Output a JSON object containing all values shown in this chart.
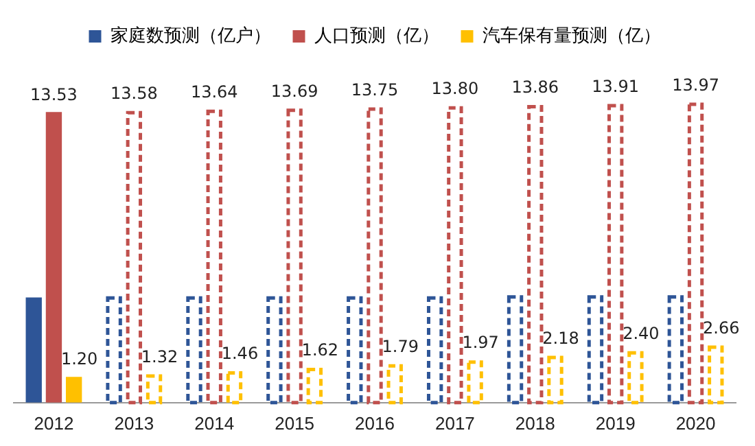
{
  "chart_data": {
    "type": "bar",
    "categories": [
      "2012",
      "2013",
      "2014",
      "2015",
      "2016",
      "2017",
      "2018",
      "2019",
      "2020"
    ],
    "tick_labels": "x",
    "legend": "top",
    "line_style": "dashed",
    "series": [
      {
        "name": "家庭数预测（亿户）",
        "color": "#2e5597",
        "values": [
          4.9,
          4.95,
          4.95,
          4.95,
          4.95,
          4.95,
          5.0,
          5.0,
          5.0
        ],
        "value_labels": [
          null,
          null,
          null,
          null,
          null,
          null,
          null,
          null,
          null
        ]
      },
      {
        "name": "人口预测（亿）",
        "color": "#c0504d",
        "values": [
          13.53,
          13.58,
          13.64,
          13.69,
          13.75,
          13.8,
          13.86,
          13.91,
          13.97
        ],
        "value_labels": [
          "13.53",
          "13.58",
          "13.64",
          "13.69",
          "13.75",
          "13.80",
          "13.86",
          "13.91",
          "13.97"
        ]
      },
      {
        "name": "汽车保有量预测（亿）",
        "color": "#ffc000",
        "values": [
          1.2,
          1.32,
          1.46,
          1.62,
          1.79,
          1.97,
          2.18,
          2.4,
          2.66
        ],
        "value_labels": [
          "1.20",
          "1.32",
          "1.46",
          "1.62",
          "1.79",
          "1.97",
          "2.18",
          "2.40",
          "2.66"
        ]
      }
    ]
  }
}
